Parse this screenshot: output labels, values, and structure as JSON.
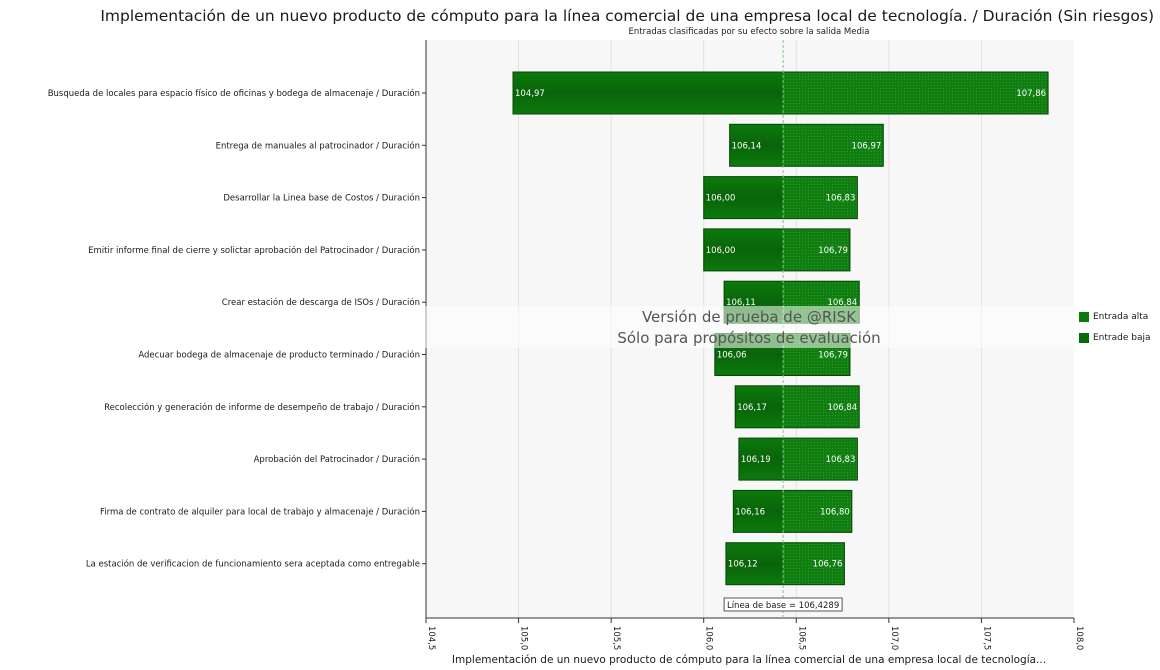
{
  "chart_data": {
    "type": "bar",
    "orientation": "horizontal",
    "chart_style": "tornado",
    "title": "Implementación de un nuevo producto de cómputo para la línea comercial de una empresa local de tecnología. / Duración (Sin riesgos)",
    "subtitle": "Entradas clasificadas por su efecto sobre la salida Media",
    "xlabel": "Implementación de un nuevo producto de cómputo para la línea comercial de una empresa local de tecnología...",
    "xlim": [
      104.5,
      108.0
    ],
    "xticks": [
      "104,5",
      "105,0",
      "105,5",
      "106,0",
      "106,5",
      "107,0",
      "107,5",
      "108,0"
    ],
    "baseline": 106.4289,
    "baseline_label": "Línea de base = 106,4289",
    "grid": true,
    "legend_position": "right",
    "series": [
      {
        "name": "Entrada alta",
        "color": "#0a7a0a"
      },
      {
        "name": "Entrade baja",
        "color": "#0a6a0a"
      }
    ],
    "bars": [
      {
        "label": "Busqueda de locales para espacio físico de oficinas y bodega de almacenaje / Duración",
        "low": 104.97,
        "high": 107.86,
        "low_text": "104,97",
        "high_text": "107,86"
      },
      {
        "label": "Entrega de manuales al patrocinador / Duración",
        "low": 106.14,
        "high": 106.97,
        "low_text": "106,14",
        "high_text": "106,97"
      },
      {
        "label": "Desarrollar la Linea base de Costos / Duración",
        "low": 106.0,
        "high": 106.83,
        "low_text": "106,00",
        "high_text": "106,83"
      },
      {
        "label": "Emitir informe final de cierre y solictar aprobación del Patrocinador / Duración",
        "low": 106.0,
        "high": 106.79,
        "low_text": "106,00",
        "high_text": "106,79"
      },
      {
        "label": "Crear estación de descarga de ISOs / Duración",
        "low": 106.11,
        "high": 106.84,
        "low_text": "106,11",
        "high_text": "106,84"
      },
      {
        "label": "Adecuar bodega de almacenaje de producto terminado / Duración",
        "low": 106.06,
        "high": 106.79,
        "low_text": "106,06",
        "high_text": "106,79"
      },
      {
        "label": "Recolección y generación de informe de desempeño de trabajo / Duración",
        "low": 106.17,
        "high": 106.84,
        "low_text": "106,17",
        "high_text": "106,84"
      },
      {
        "label": "Aprobación del Patrocinador / Duración",
        "low": 106.19,
        "high": 106.83,
        "low_text": "106,19",
        "high_text": "106,83"
      },
      {
        "label": "Firma de contrato de alquiler para local de trabajo y almacenaje / Duración",
        "low": 106.16,
        "high": 106.8,
        "low_text": "106,16",
        "high_text": "106,80"
      },
      {
        "label": "La estación de verificacion de funcionamiento sera aceptada como entregable",
        "low": 106.12,
        "high": 106.76,
        "low_text": "106,12",
        "high_text": "106,76"
      }
    ]
  },
  "watermark": {
    "line1": "Versión de prueba de @RISK",
    "line2": "Sólo para propósitos de evaluación"
  }
}
